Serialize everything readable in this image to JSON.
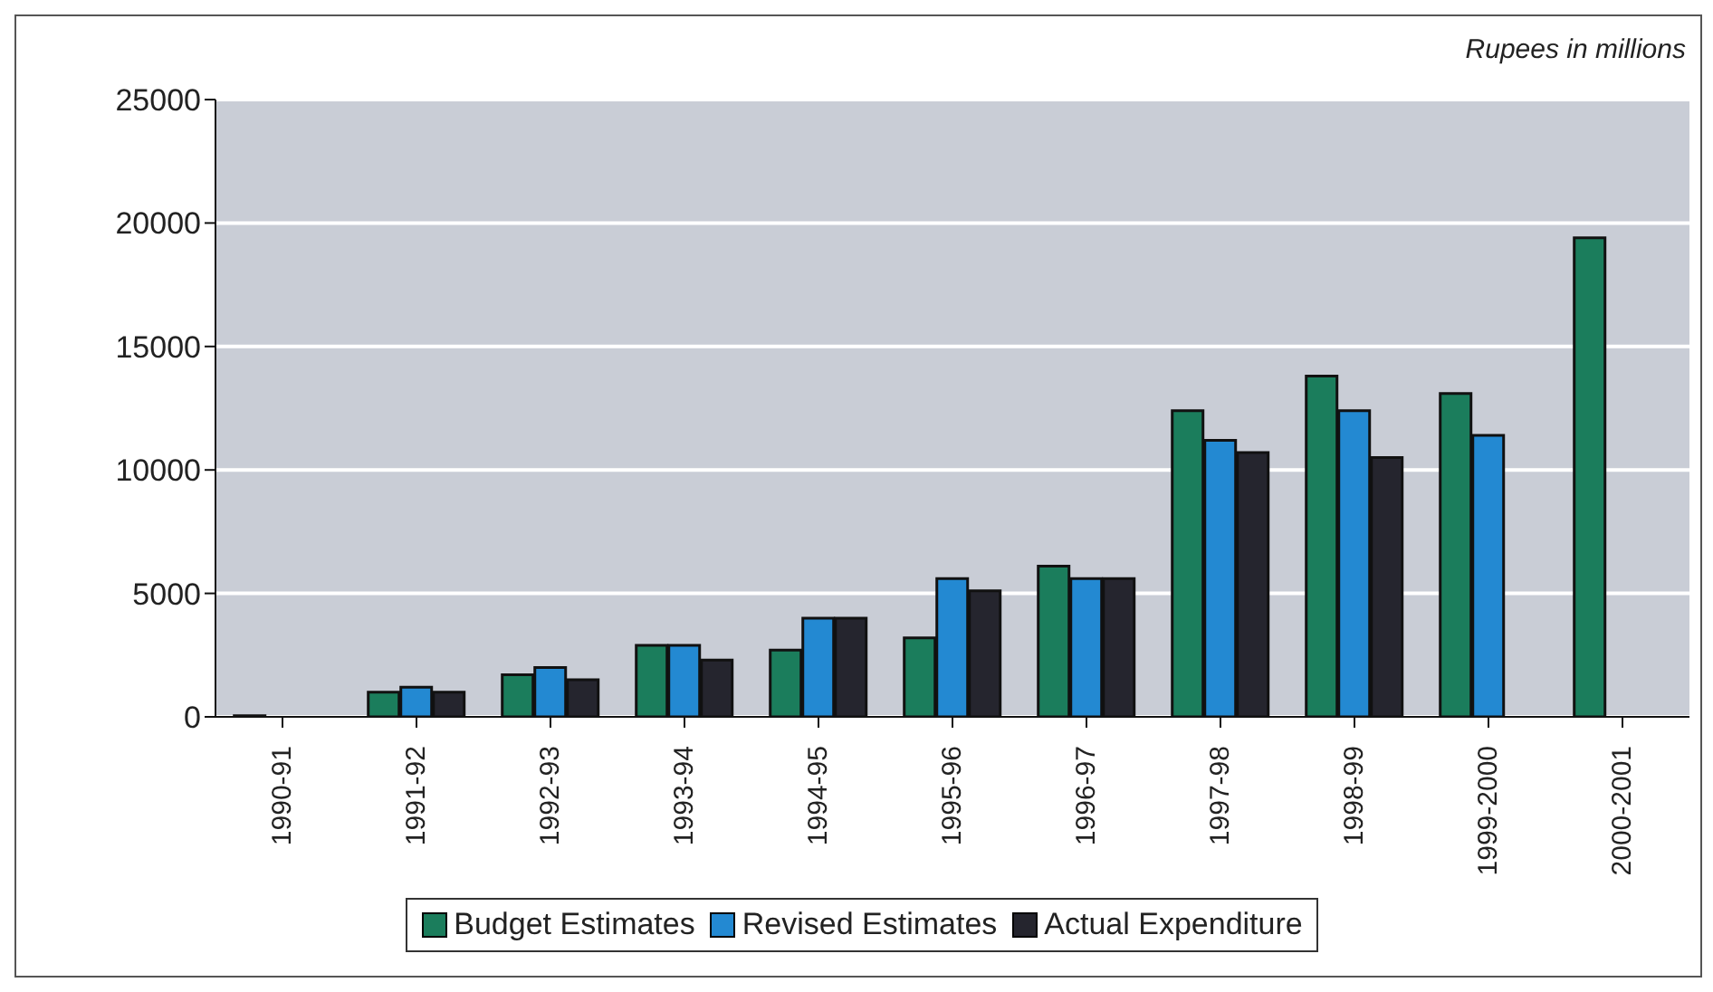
{
  "chart_data": {
    "type": "bar",
    "categories": [
      "1990-91",
      "1991-92",
      "1992-93",
      "1993-94",
      "1994-95",
      "1995-96",
      "1996-97",
      "1997-98",
      "1998-99",
      "1999-2000",
      "2000-2001"
    ],
    "series": [
      {
        "name": "Budget Estimates",
        "color": "#1b7d5c",
        "values": [
          50,
          1000,
          1700,
          2900,
          2700,
          3200,
          6100,
          12400,
          13800,
          13100,
          19400
        ]
      },
      {
        "name": "Revised Estimates",
        "color": "#2389d2",
        "values": [
          null,
          1200,
          2000,
          2900,
          4000,
          5600,
          5600,
          11200,
          12400,
          11400,
          null
        ]
      },
      {
        "name": "Actual Expenditure",
        "color": "#25252e",
        "values": [
          null,
          1000,
          1500,
          2300,
          4000,
          5100,
          5600,
          10700,
          10500,
          null,
          null
        ]
      }
    ],
    "ylim": [
      0,
      25000
    ],
    "yticks": [
      0,
      5000,
      10000,
      15000,
      20000,
      25000
    ],
    "grid": "y",
    "legend": "bottom",
    "annotations": [
      "Rupees in millions"
    ]
  }
}
